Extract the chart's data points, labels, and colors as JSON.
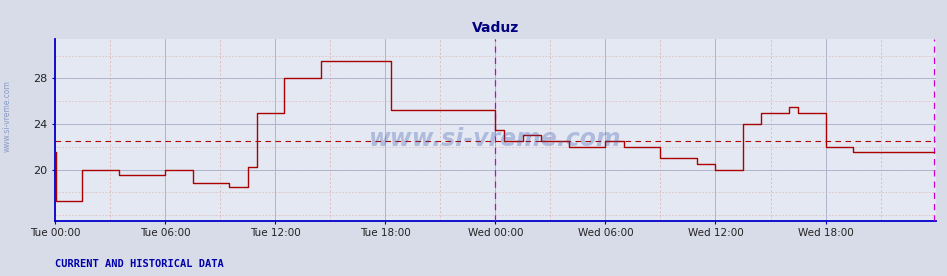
{
  "title": "Vaduz",
  "title_color": "#000080",
  "bg_color": "#d8dce8",
  "plot_bg_color": "#e4e8f2",
  "axis_color": "#0000cc",
  "line_color": "#aa0000",
  "dashed_hline_color": "#aa0000",
  "dashed_hline_y": 22.5,
  "vline_magenta_color": "#cc00cc",
  "vline_magenta_x": 24.0,
  "vline_magenta_x2": 47.9,
  "grid_color_major": "#b0b4cc",
  "grid_color_minor": "#ddaaaa",
  "watermark": "www.si-vreme.com",
  "watermark_color": "#3355aa",
  "watermark_alpha": 0.3,
  "footer_text": "CURRENT AND HISTORICAL DATA",
  "legend_color": "#cc0000",
  "yticks": [
    20,
    24,
    28
  ],
  "ylim": [
    15.5,
    31.5
  ],
  "xlim": [
    0,
    48
  ],
  "xtick_labels": [
    "Tue 00:00",
    "Tue 06:00",
    "Tue 12:00",
    "Tue 18:00",
    "Wed 00:00",
    "Wed 06:00",
    "Wed 12:00",
    "Wed 18:00"
  ],
  "xtick_positions": [
    0,
    6,
    12,
    18,
    24,
    30,
    36,
    42
  ],
  "temperature_steps": [
    [
      0.0,
      21.5
    ],
    [
      0.08,
      21.5
    ],
    [
      0.08,
      17.2
    ],
    [
      1.5,
      17.2
    ],
    [
      1.5,
      20.0
    ],
    [
      3.5,
      20.0
    ],
    [
      3.5,
      19.5
    ],
    [
      6.0,
      19.5
    ],
    [
      6.0,
      20.0
    ],
    [
      7.5,
      20.0
    ],
    [
      7.5,
      18.8
    ],
    [
      9.5,
      18.8
    ],
    [
      9.5,
      18.5
    ],
    [
      10.5,
      18.5
    ],
    [
      10.5,
      20.2
    ],
    [
      11.0,
      20.2
    ],
    [
      11.0,
      25.0
    ],
    [
      12.5,
      25.0
    ],
    [
      12.5,
      28.0
    ],
    [
      14.5,
      28.0
    ],
    [
      14.5,
      29.5
    ],
    [
      17.5,
      29.5
    ],
    [
      17.5,
      29.5
    ],
    [
      18.3,
      29.5
    ],
    [
      18.3,
      25.2
    ],
    [
      24.0,
      25.2
    ],
    [
      24.0,
      23.5
    ],
    [
      24.5,
      23.5
    ],
    [
      24.5,
      22.5
    ],
    [
      25.5,
      22.5
    ],
    [
      25.5,
      23.0
    ],
    [
      26.5,
      23.0
    ],
    [
      26.5,
      22.5
    ],
    [
      28.0,
      22.5
    ],
    [
      28.0,
      22.0
    ],
    [
      30.0,
      22.0
    ],
    [
      30.0,
      22.5
    ],
    [
      31.0,
      22.5
    ],
    [
      31.0,
      22.0
    ],
    [
      33.0,
      22.0
    ],
    [
      33.0,
      21.0
    ],
    [
      35.0,
      21.0
    ],
    [
      35.0,
      20.5
    ],
    [
      36.0,
      20.5
    ],
    [
      36.0,
      20.0
    ],
    [
      37.5,
      20.0
    ],
    [
      37.5,
      24.0
    ],
    [
      38.5,
      24.0
    ],
    [
      38.5,
      25.0
    ],
    [
      40.0,
      25.0
    ],
    [
      40.0,
      25.5
    ],
    [
      40.5,
      25.5
    ],
    [
      40.5,
      25.0
    ],
    [
      42.0,
      25.0
    ],
    [
      42.0,
      22.0
    ],
    [
      43.5,
      22.0
    ],
    [
      43.5,
      21.5
    ],
    [
      47.9,
      21.5
    ]
  ]
}
